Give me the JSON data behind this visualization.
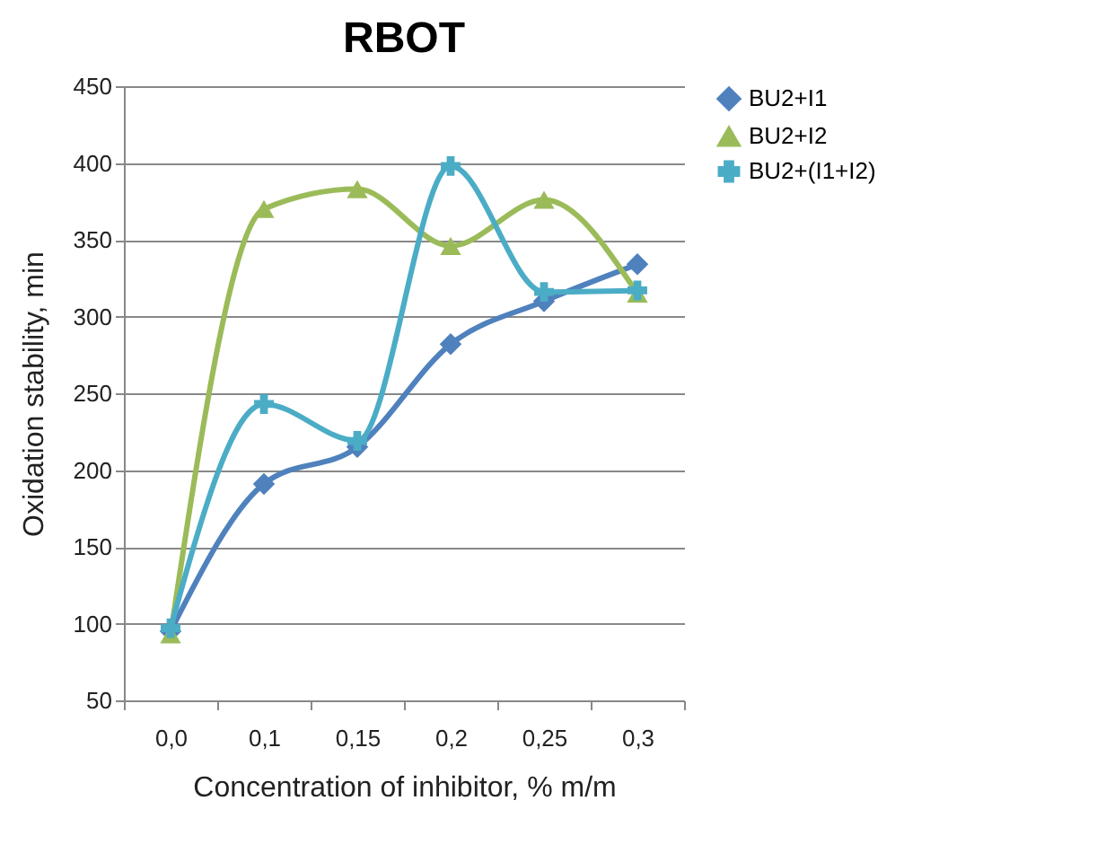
{
  "chart_data": {
    "type": "line",
    "title": "RBOT",
    "xlabel": "Concentration of inhibitor, % m/m",
    "ylabel": "Oxidation stability, min",
    "categories": [
      "0,0",
      "0,1",
      "0,15",
      "0,2",
      "0,25",
      "0,3"
    ],
    "series": [
      {
        "name": "BU2+I1",
        "color": "#4f81bd",
        "marker": "diamond",
        "values": [
          95,
          191,
          215,
          282,
          310,
          334
        ]
      },
      {
        "name": "BU2+I2",
        "color": "#9bbb59",
        "marker": "triangle",
        "values": [
          93,
          370,
          383,
          346,
          376,
          315
        ]
      },
      {
        "name": "BU2+(I1+I2)",
        "color": "#4bacc6",
        "marker": "cross",
        "values": [
          97,
          243,
          219,
          398,
          316,
          317
        ]
      }
    ],
    "ylim": [
      50,
      450
    ],
    "yticks": [
      50,
      100,
      150,
      200,
      250,
      300,
      350,
      400,
      450
    ],
    "grid": "y",
    "legend": "right",
    "line_style": "solid"
  }
}
